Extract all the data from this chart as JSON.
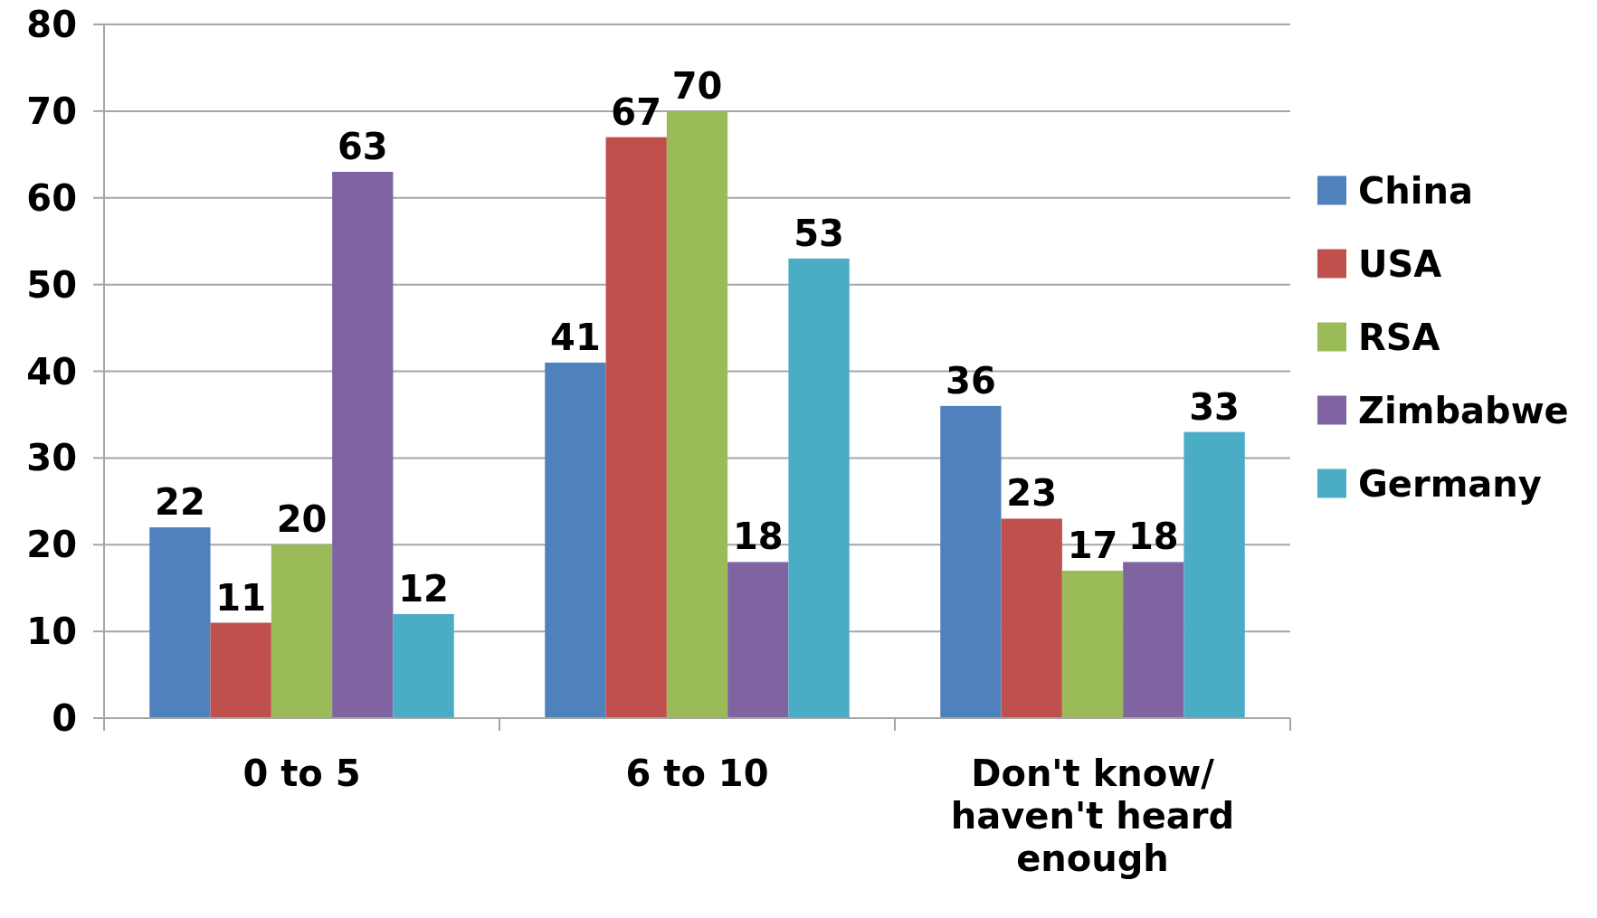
{
  "chart_data": {
    "type": "bar",
    "categories": [
      "0 to 5",
      "6 to 10",
      "Don't know/ haven't heard enough"
    ],
    "series": [
      {
        "name": "China",
        "color": "#4f81bd",
        "values": [
          22,
          41,
          36
        ]
      },
      {
        "name": "USA",
        "color": "#c0504d",
        "values": [
          11,
          67,
          23
        ]
      },
      {
        "name": "RSA",
        "color": "#9bbb59",
        "values": [
          20,
          70,
          17
        ]
      },
      {
        "name": "Zimbabwe",
        "color": "#8064a2",
        "values": [
          63,
          18,
          18
        ]
      },
      {
        "name": "Germany",
        "color": "#4bacc6",
        "values": [
          12,
          53,
          33
        ]
      }
    ],
    "ylim": [
      0,
      80
    ],
    "yticks": [
      0,
      10,
      20,
      30,
      40,
      50,
      60,
      70,
      80
    ],
    "grid": "y",
    "legend": "right",
    "data_labels": true
  }
}
